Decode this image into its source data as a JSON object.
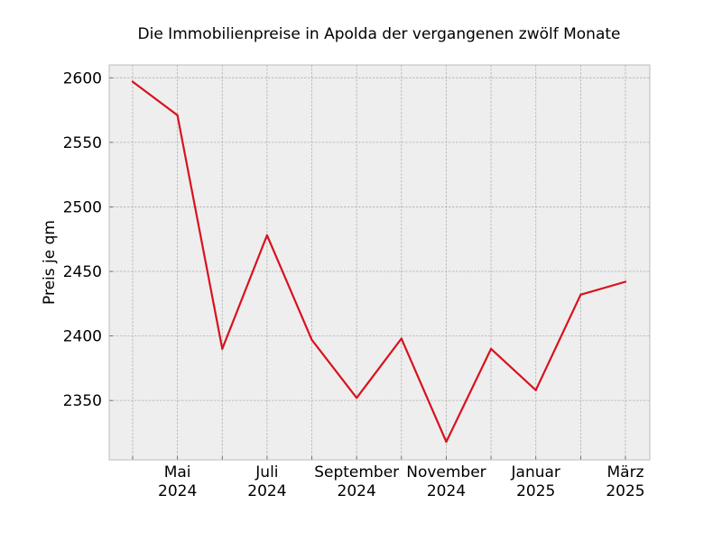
{
  "chart_data": {
    "type": "line",
    "title": "Die Immobilienpreise in Apolda der vergangenen zwölf Monate",
    "xlabel": "",
    "ylabel": "Preis je qm",
    "x": [
      "2024-04",
      "2024-05",
      "2024-06",
      "2024-07",
      "2024-08",
      "2024-09",
      "2024-10",
      "2024-11",
      "2024-12",
      "2025-01",
      "2025-02",
      "2025-03"
    ],
    "x_tick_labels": [
      {
        "x": "2024-05",
        "month": "Mai",
        "year": "2024"
      },
      {
        "x": "2024-07",
        "month": "Juli",
        "year": "2024"
      },
      {
        "x": "2024-09",
        "month": "September",
        "year": "2024"
      },
      {
        "x": "2024-11",
        "month": "November",
        "year": "2024"
      },
      {
        "x": "2025-01",
        "month": "Januar",
        "year": "2025"
      },
      {
        "x": "2025-03",
        "month": "März",
        "year": "2025"
      }
    ],
    "y_ticks": [
      2350,
      2400,
      2450,
      2500,
      2550,
      2600
    ],
    "ylim": [
      2304,
      2610
    ],
    "grid": true,
    "series": [
      {
        "values": [
          2597,
          2571,
          2390,
          2478,
          2397,
          2352,
          2398,
          2318,
          2390,
          2358,
          2432,
          2442
        ],
        "color": "#d8121d"
      }
    ],
    "style": {
      "plot_background": "#eeeeee",
      "frame_color": "#bcbcbc"
    }
  }
}
